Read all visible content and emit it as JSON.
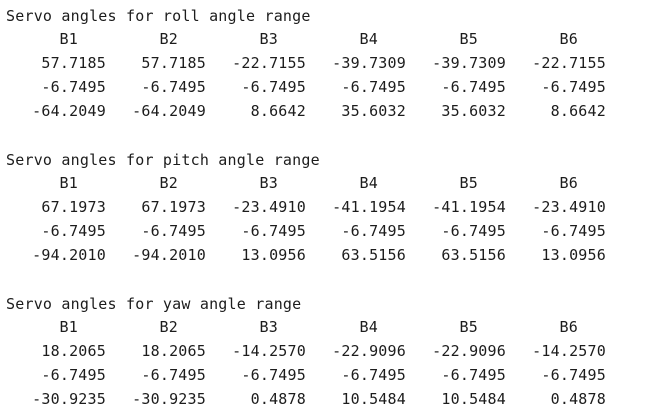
{
  "sections": [
    {
      "title": "Servo angles for roll angle range",
      "headers": [
        "B1",
        "B2",
        "B3",
        "B4",
        "B5",
        "B6"
      ],
      "rows": [
        [
          "57.7185",
          "57.7185",
          "-22.7155",
          "-39.7309",
          "-39.7309",
          "-22.7155"
        ],
        [
          "-6.7495",
          "-6.7495",
          "-6.7495",
          "-6.7495",
          "-6.7495",
          "-6.7495"
        ],
        [
          "-64.2049",
          "-64.2049",
          "8.6642",
          "35.6032",
          "35.6032",
          "8.6642"
        ]
      ]
    },
    {
      "title": "Servo angles for pitch angle range",
      "headers": [
        "B1",
        "B2",
        "B3",
        "B4",
        "B5",
        "B6"
      ],
      "rows": [
        [
          "67.1973",
          "67.1973",
          "-23.4910",
          "-41.1954",
          "-41.1954",
          "-23.4910"
        ],
        [
          "-6.7495",
          "-6.7495",
          "-6.7495",
          "-6.7495",
          "-6.7495",
          "-6.7495"
        ],
        [
          "-94.2010",
          "-94.2010",
          "13.0956",
          "63.5156",
          "63.5156",
          "13.0956"
        ]
      ]
    },
    {
      "title": "Servo angles for yaw angle range",
      "headers": [
        "B1",
        "B2",
        "B3",
        "B4",
        "B5",
        "B6"
      ],
      "rows": [
        [
          "18.2065",
          "18.2065",
          "-14.2570",
          "-22.9096",
          "-22.9096",
          "-14.2570"
        ],
        [
          "-6.7495",
          "-6.7495",
          "-6.7495",
          "-6.7495",
          "-6.7495",
          "-6.7495"
        ],
        [
          "-30.9235",
          "-30.9235",
          "0.4878",
          "10.5484",
          "10.5484",
          "0.4878"
        ]
      ]
    }
  ]
}
